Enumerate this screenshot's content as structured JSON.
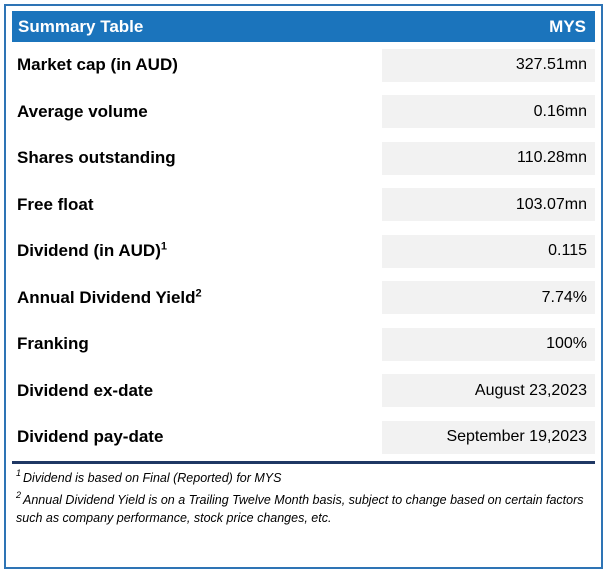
{
  "header": {
    "title": "Summary Table",
    "ticker": "MYS"
  },
  "table": {
    "rows": [
      {
        "label": "Market cap (in AUD)",
        "value": "327.51mn"
      },
      {
        "label": "Average volume",
        "value": "0.16mn"
      },
      {
        "label": "Shares outstanding",
        "value": "110.28mn"
      },
      {
        "label": "Free float",
        "value": "103.07mn"
      },
      {
        "label": "Dividend (in AUD)",
        "sup": "1",
        "value": "0.115"
      },
      {
        "label": "Annual Dividend Yield",
        "sup": "2",
        "value": "7.74%"
      },
      {
        "label": "Franking",
        "value": "100%"
      },
      {
        "label": "Dividend ex-date",
        "value": "August 23,2023"
      },
      {
        "label": "Dividend pay-date",
        "value": "September 19,2023"
      }
    ]
  },
  "footnotes": [
    {
      "sup": "1",
      "text": "Dividend is based on Final (Reported) for MYS"
    },
    {
      "sup": "2",
      "text": "Annual Dividend Yield is on a Trailing Twelve Month basis, subject to change based on certain factors such as company performance, stock price changes, etc."
    }
  ],
  "colors": {
    "header_bg": "#1b74bc",
    "value_bg": "#f2f2f2",
    "border": "#2e74b5",
    "divider": "#1f3864"
  }
}
